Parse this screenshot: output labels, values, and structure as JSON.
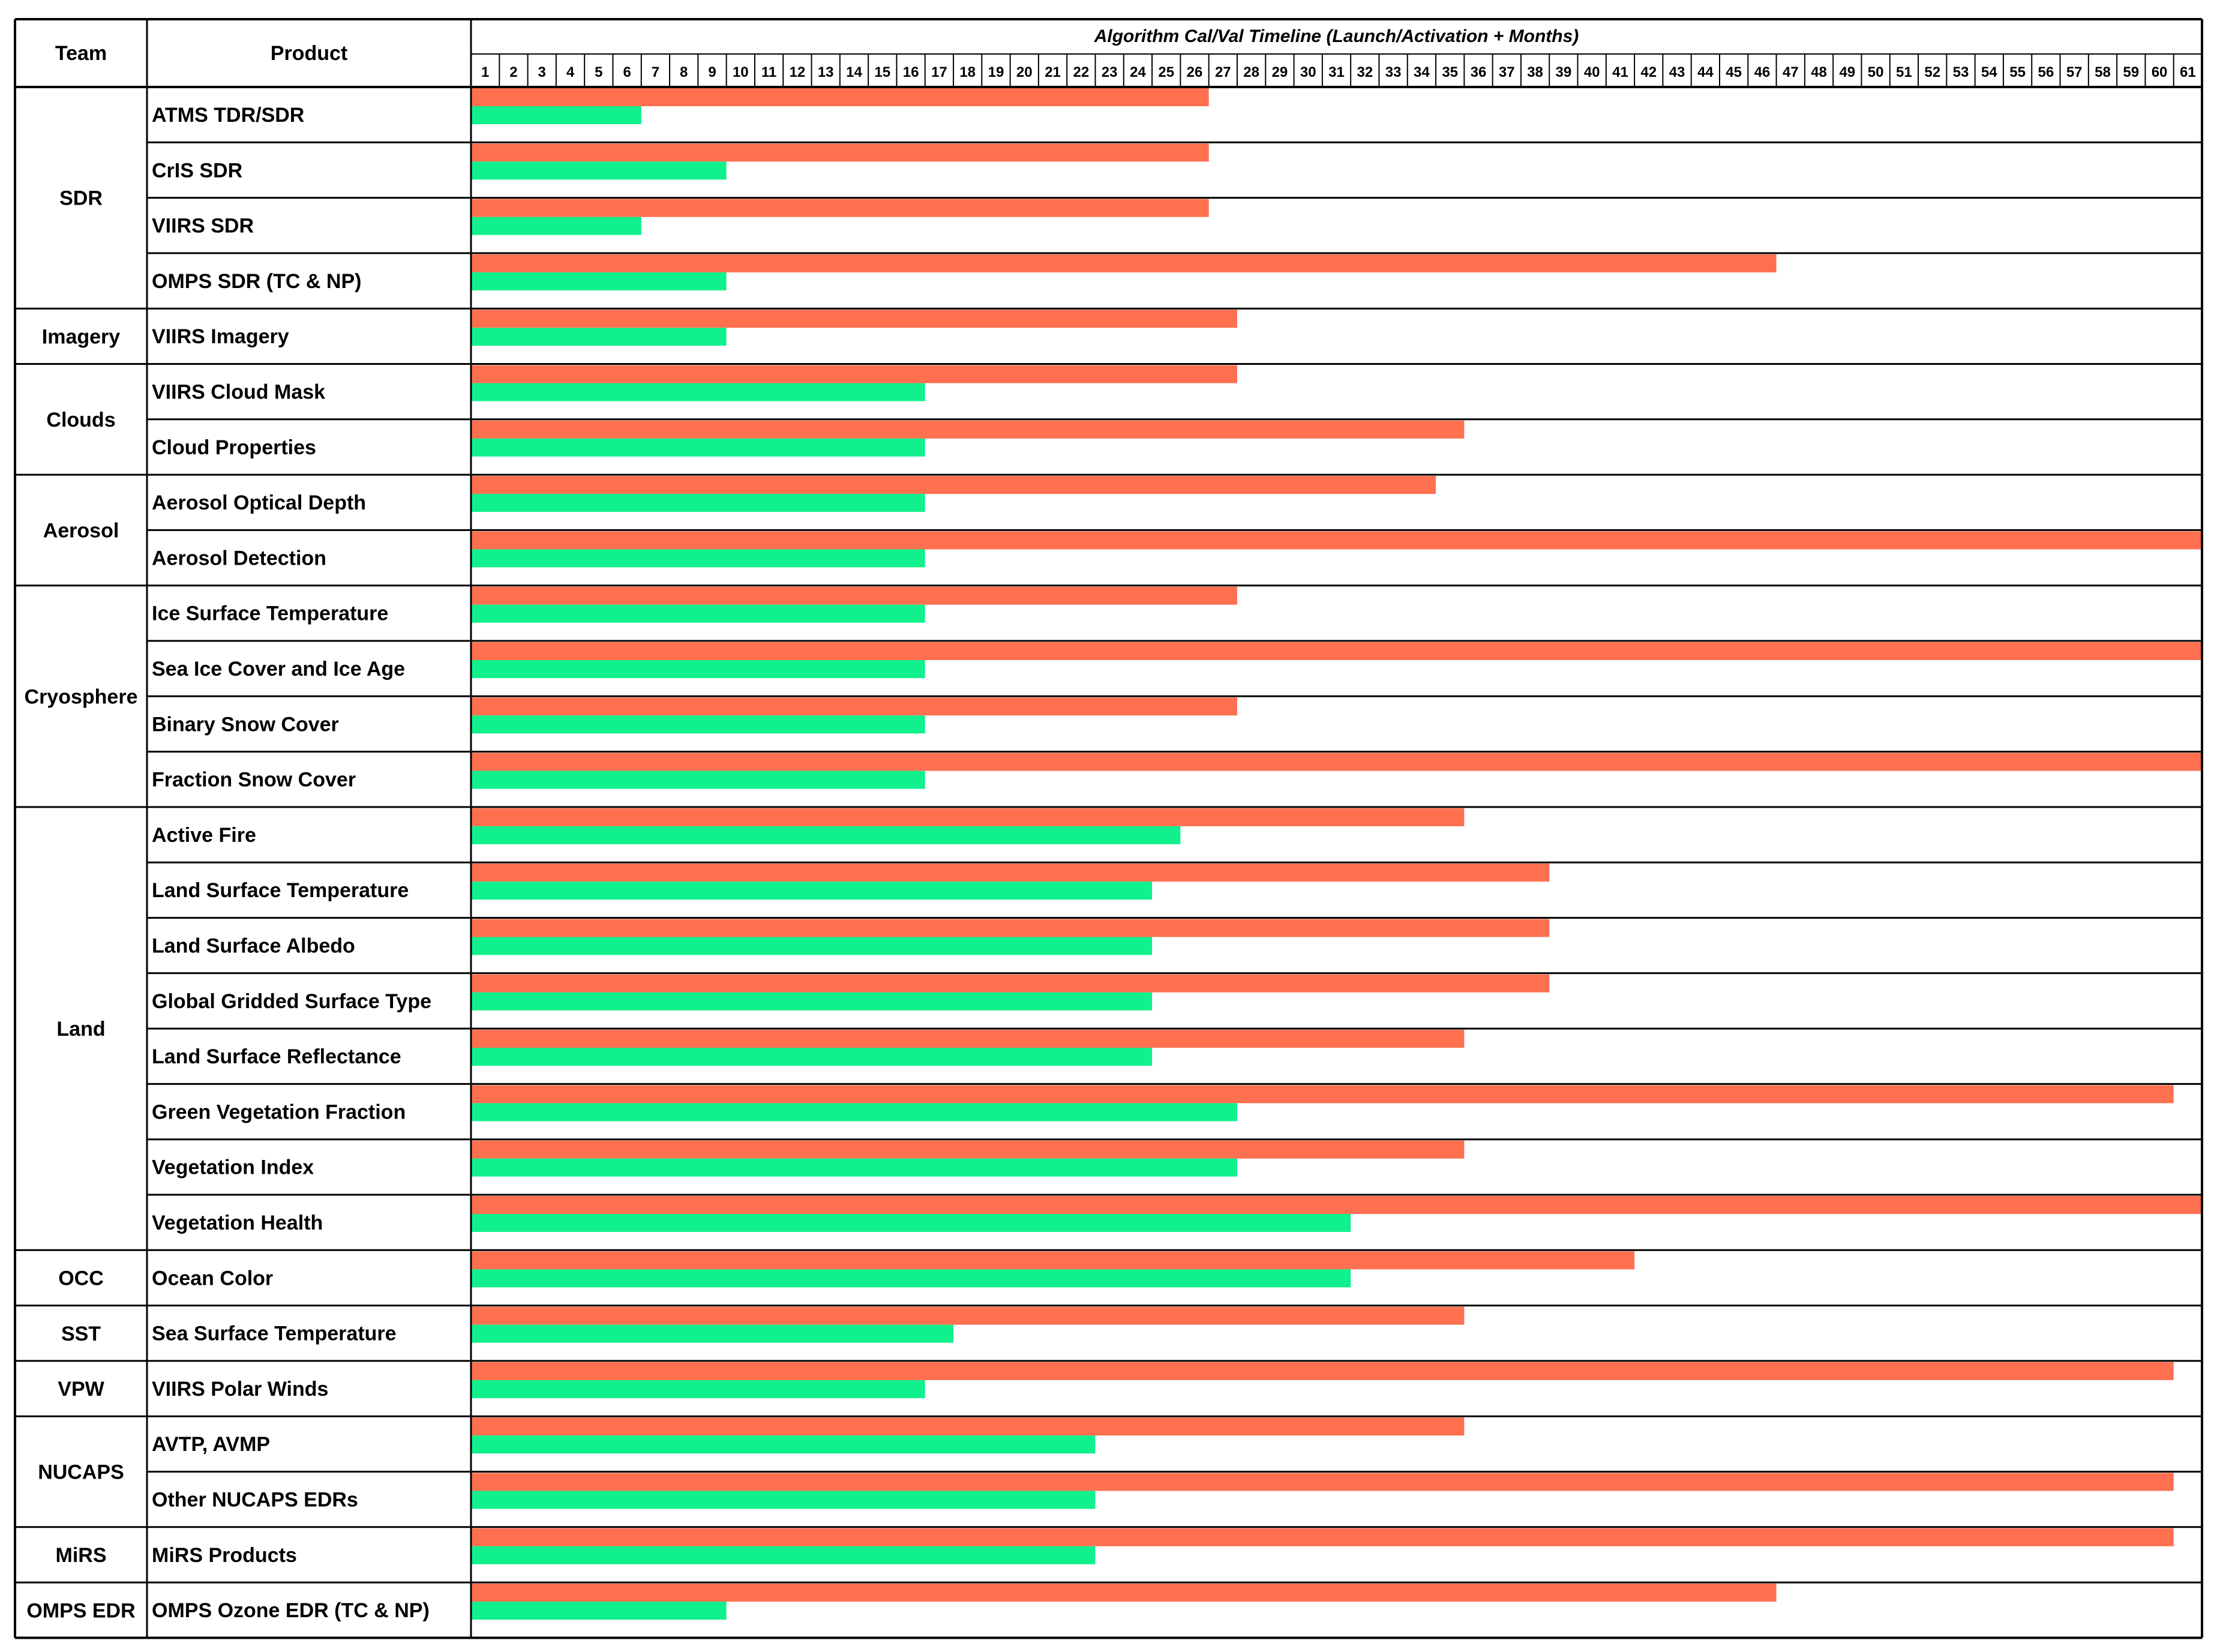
{
  "chart_data": {
    "type": "gantt-bar",
    "title": "Algorithm Cal/Val Timeline (Launch/Activation + Months)",
    "column_headers": {
      "team": "Team",
      "product": "Product"
    },
    "months": [
      1,
      2,
      3,
      4,
      5,
      6,
      7,
      8,
      9,
      10,
      11,
      12,
      13,
      14,
      15,
      16,
      17,
      18,
      19,
      20,
      21,
      22,
      23,
      24,
      25,
      26,
      27,
      28,
      29,
      30,
      31,
      32,
      33,
      34,
      35,
      36,
      37,
      38,
      39,
      40,
      41,
      42,
      43,
      44,
      45,
      46,
      47,
      48,
      49,
      50,
      51,
      52,
      53,
      54,
      55,
      56,
      57,
      58,
      59,
      60,
      61
    ],
    "xlim": [
      0,
      61
    ],
    "colors": {
      "orange": "#FF7050",
      "green": "#10F08C",
      "grid": "#000000"
    },
    "teams": [
      {
        "name": "SDR",
        "products": [
          {
            "name": "ATMS TDR/SDR",
            "orange": 26,
            "green": 6
          },
          {
            "name": "CrIS SDR",
            "orange": 26,
            "green": 9
          },
          {
            "name": "VIIRS SDR",
            "orange": 26,
            "green": 6
          },
          {
            "name": "OMPS SDR (TC & NP)",
            "orange": 46,
            "green": 9
          }
        ]
      },
      {
        "name": "Imagery",
        "products": [
          {
            "name": "VIIRS Imagery",
            "orange": 27,
            "green": 9
          }
        ]
      },
      {
        "name": "Clouds",
        "products": [
          {
            "name": "VIIRS Cloud Mask",
            "orange": 27,
            "green": 16
          },
          {
            "name": "Cloud Properties",
            "orange": 35,
            "green": 16
          }
        ]
      },
      {
        "name": "Aerosol",
        "products": [
          {
            "name": "Aerosol Optical Depth",
            "orange": 34,
            "green": 16
          },
          {
            "name": "Aerosol Detection",
            "orange": 61,
            "green": 16
          }
        ]
      },
      {
        "name": "Cryosphere",
        "products": [
          {
            "name": "Ice Surface Temperature",
            "orange": 27,
            "green": 16
          },
          {
            "name": "Sea Ice Cover and Ice Age",
            "orange": 61,
            "green": 16
          },
          {
            "name": "Binary Snow Cover",
            "orange": 27,
            "green": 16
          },
          {
            "name": "Fraction Snow Cover",
            "orange": 61,
            "green": 16
          }
        ]
      },
      {
        "name": "Land",
        "products": [
          {
            "name": "Active Fire",
            "orange": 35,
            "green": 25
          },
          {
            "name": "Land Surface Temperature",
            "orange": 38,
            "green": 24
          },
          {
            "name": "Land Surface Albedo",
            "orange": 38,
            "green": 24
          },
          {
            "name": "Global Gridded Surface Type",
            "orange": 38,
            "green": 24
          },
          {
            "name": "Land Surface Reflectance",
            "orange": 35,
            "green": 24
          },
          {
            "name": "Green Vegetation Fraction",
            "orange": 60,
            "green": 27
          },
          {
            "name": "Vegetation Index",
            "orange": 35,
            "green": 27
          },
          {
            "name": "Vegetation Health",
            "orange": 61,
            "green": 31
          }
        ]
      },
      {
        "name": "OCC",
        "products": [
          {
            "name": "Ocean Color",
            "orange": 41,
            "green": 31
          }
        ]
      },
      {
        "name": "SST",
        "products": [
          {
            "name": "Sea Surface Temperature",
            "orange": 35,
            "green": 17
          }
        ]
      },
      {
        "name": "VPW",
        "products": [
          {
            "name": "VIIRS Polar Winds",
            "orange": 60,
            "green": 16
          }
        ]
      },
      {
        "name": "NUCAPS",
        "products": [
          {
            "name": "AVTP, AVMP",
            "orange": 35,
            "green": 22
          },
          {
            "name": "Other NUCAPS EDRs",
            "orange": 60,
            "green": 22
          }
        ]
      },
      {
        "name": "MiRS",
        "products": [
          {
            "name": "MiRS Products",
            "orange": 60,
            "green": 22
          }
        ]
      },
      {
        "name": "OMPS EDR",
        "products": [
          {
            "name": "OMPS Ozone EDR (TC & NP)",
            "orange": 46,
            "green": 9
          }
        ]
      }
    ]
  }
}
